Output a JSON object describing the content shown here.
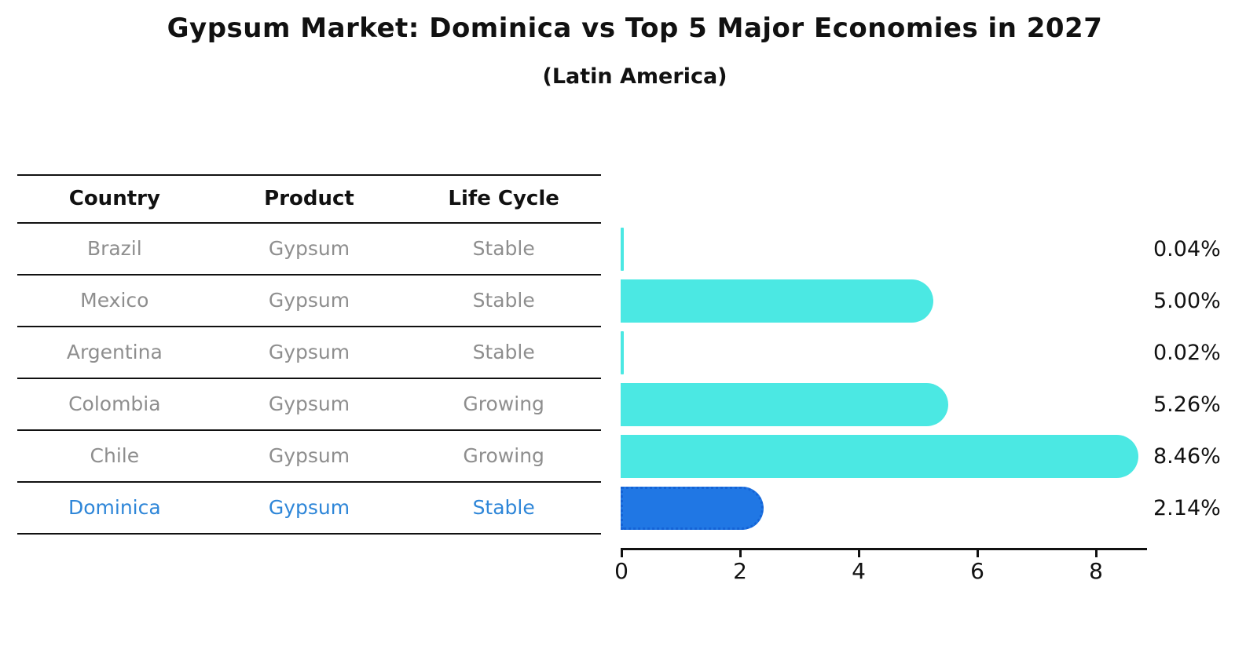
{
  "header": {
    "title": "Gypsum Market: Dominica vs Top 5 Major Economies in 2027",
    "subtitle": "(Latin America)"
  },
  "table": {
    "headers": [
      "Country",
      "Product",
      "Life Cycle"
    ]
  },
  "chart_data": {
    "type": "bar",
    "orientation": "horizontal",
    "title": "Gypsum Market: Dominica vs Top 5 Major Economies in 2027",
    "subtitle": "(Latin America)",
    "xlabel": "",
    "ylabel": "",
    "xlim": [
      0,
      8.9
    ],
    "xticks": [
      0,
      2,
      4,
      6,
      8
    ],
    "grid": false,
    "legend": "none",
    "rows": [
      {
        "country": "Brazil",
        "product": "Gypsum",
        "life_cycle": "Stable",
        "value": 0.04,
        "value_label": "0.04%",
        "highlight": false
      },
      {
        "country": "Mexico",
        "product": "Gypsum",
        "life_cycle": "Stable",
        "value": 5.0,
        "value_label": "5.00%",
        "highlight": false
      },
      {
        "country": "Argentina",
        "product": "Gypsum",
        "life_cycle": "Stable",
        "value": 0.02,
        "value_label": "0.02%",
        "highlight": false
      },
      {
        "country": "Colombia",
        "product": "Gypsum",
        "life_cycle": "Growing",
        "value": 5.26,
        "value_label": "5.26%",
        "highlight": false
      },
      {
        "country": "Chile",
        "product": "Gypsum",
        "life_cycle": "Growing",
        "value": 8.46,
        "value_label": "8.46%",
        "highlight": false
      },
      {
        "country": "Dominica",
        "product": "Gypsum",
        "life_cycle": "Stable",
        "value": 2.14,
        "value_label": "2.14%",
        "highlight": true
      }
    ],
    "colors": {
      "bar": "#4BE8E3",
      "highlight_bar": "#2077E4",
      "highlight_bar_border": "#1463D6",
      "highlight_text": "#2E86D8",
      "row_text": "#8E8E8E",
      "value_text": "#111111"
    }
  }
}
